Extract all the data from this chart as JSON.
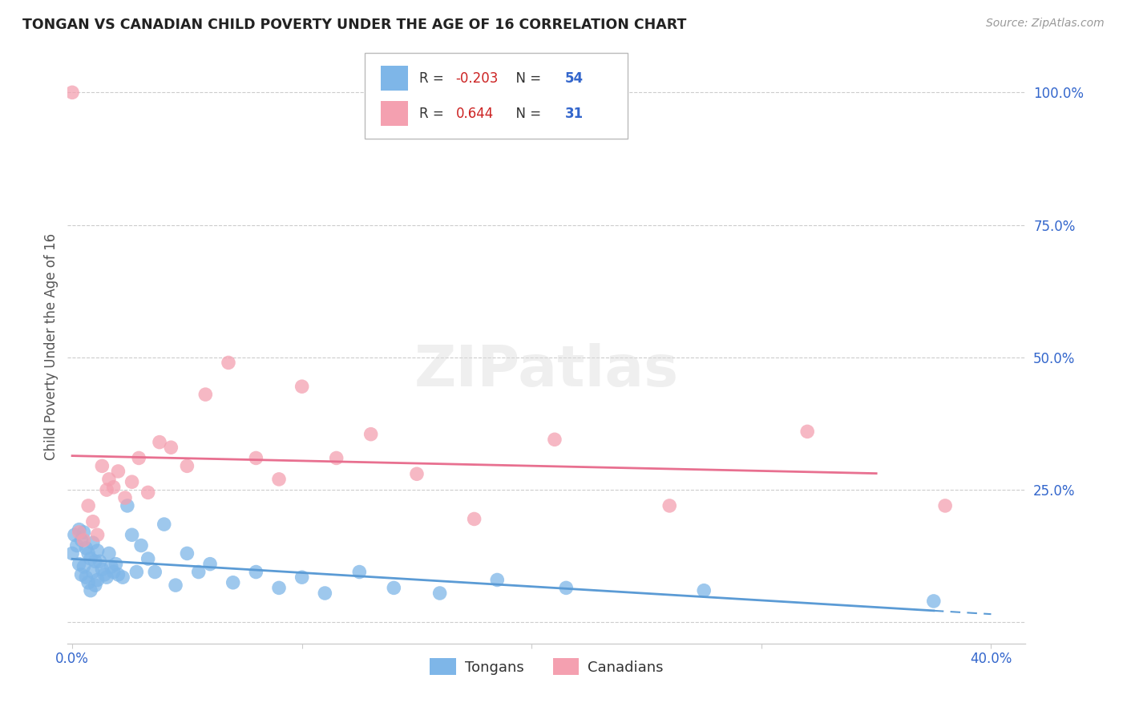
{
  "title": "TONGAN VS CANADIAN CHILD POVERTY UNDER THE AGE OF 16 CORRELATION CHART",
  "source": "Source: ZipAtlas.com",
  "ylabel_label": "Child Poverty Under the Age of 16",
  "x_min": -0.002,
  "x_max": 0.415,
  "y_min": -0.04,
  "y_max": 1.08,
  "tongan_R": -0.203,
  "tongan_N": 54,
  "canadian_R": 0.644,
  "canadian_N": 31,
  "tongan_color": "#7EB6E8",
  "canadian_color": "#F4A0B0",
  "trendline_tongan_color": "#5B9BD5",
  "trendline_canadian_color": "#E87090",
  "watermark": "ZIPatlas",
  "tongan_x": [
    0.0,
    0.001,
    0.002,
    0.003,
    0.003,
    0.004,
    0.004,
    0.005,
    0.005,
    0.006,
    0.006,
    0.007,
    0.007,
    0.008,
    0.008,
    0.009,
    0.009,
    0.01,
    0.01,
    0.011,
    0.011,
    0.012,
    0.013,
    0.014,
    0.015,
    0.016,
    0.017,
    0.018,
    0.019,
    0.02,
    0.022,
    0.024,
    0.026,
    0.028,
    0.03,
    0.033,
    0.036,
    0.04,
    0.045,
    0.05,
    0.055,
    0.06,
    0.07,
    0.08,
    0.09,
    0.1,
    0.11,
    0.125,
    0.14,
    0.16,
    0.185,
    0.215,
    0.275,
    0.375
  ],
  "tongan_y": [
    0.13,
    0.165,
    0.145,
    0.11,
    0.175,
    0.09,
    0.155,
    0.105,
    0.17,
    0.085,
    0.14,
    0.075,
    0.13,
    0.06,
    0.12,
    0.095,
    0.15,
    0.07,
    0.115,
    0.08,
    0.135,
    0.115,
    0.1,
    0.09,
    0.085,
    0.13,
    0.105,
    0.095,
    0.11,
    0.09,
    0.085,
    0.22,
    0.165,
    0.095,
    0.145,
    0.12,
    0.095,
    0.185,
    0.07,
    0.13,
    0.095,
    0.11,
    0.075,
    0.095,
    0.065,
    0.085,
    0.055,
    0.095,
    0.065,
    0.055,
    0.08,
    0.065,
    0.06,
    0.04
  ],
  "canadian_x": [
    0.0,
    0.003,
    0.005,
    0.007,
    0.009,
    0.011,
    0.013,
    0.015,
    0.016,
    0.018,
    0.02,
    0.023,
    0.026,
    0.029,
    0.033,
    0.038,
    0.043,
    0.05,
    0.058,
    0.068,
    0.08,
    0.09,
    0.1,
    0.115,
    0.13,
    0.15,
    0.175,
    0.21,
    0.26,
    0.32,
    0.38
  ],
  "canadian_y": [
    1.0,
    0.17,
    0.155,
    0.22,
    0.19,
    0.165,
    0.295,
    0.25,
    0.27,
    0.255,
    0.285,
    0.235,
    0.265,
    0.31,
    0.245,
    0.34,
    0.33,
    0.295,
    0.43,
    0.49,
    0.31,
    0.27,
    0.445,
    0.31,
    0.355,
    0.28,
    0.195,
    0.345,
    0.22,
    0.36,
    0.22
  ]
}
